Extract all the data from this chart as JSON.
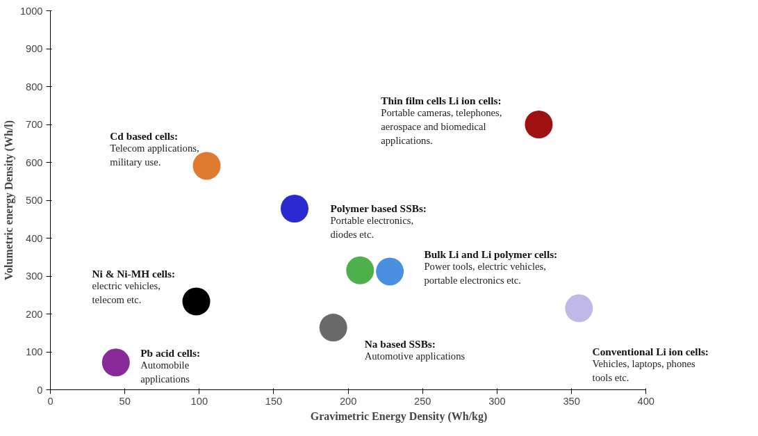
{
  "chart_data": {
    "type": "scatter",
    "xlabel": "Gravimetric Energy Density (Wh/kg)",
    "ylabel": "Volumetric energy Density (Wh/l)",
    "xlim": [
      0,
      400
    ],
    "ylim": [
      0,
      1000
    ],
    "xticks": [
      0,
      50,
      100,
      150,
      200,
      250,
      300,
      350,
      400
    ],
    "yticks": [
      0,
      100,
      200,
      300,
      400,
      500,
      600,
      700,
      800,
      900,
      1000
    ],
    "grid": false,
    "marker": "circle",
    "series": [
      {
        "name": "Thin film cells Li ion cells:",
        "x": [
          328
        ],
        "values": [
          700
        ],
        "colors": [
          "#a01010"
        ]
      },
      {
        "name": "Cd based cells:",
        "x": [
          105
        ],
        "values": [
          591
        ],
        "colors": [
          "#e07a30"
        ]
      },
      {
        "name": "Polymer based SSBs:",
        "x": [
          164
        ],
        "values": [
          478
        ],
        "colors": [
          "#2a2ad0"
        ]
      },
      {
        "name": "Bulk Li and Li polymer cells:",
        "x": [
          208,
          228
        ],
        "values": [
          315,
          312
        ],
        "colors": [
          "#4cb04c",
          "#4a90e0"
        ]
      },
      {
        "name": "Ni & Ni-MH cells:",
        "x": [
          98
        ],
        "values": [
          233
        ],
        "colors": [
          "#000000"
        ]
      },
      {
        "name": "Conventional Li ion cells:",
        "x": [
          355
        ],
        "values": [
          215
        ],
        "colors": [
          "#c0b8e8"
        ]
      },
      {
        "name": "Na based SSBs:",
        "x": [
          190
        ],
        "values": [
          164
        ],
        "colors": [
          "#6a6a6a"
        ]
      },
      {
        "name": "Pb acid cells:",
        "x": [
          44
        ],
        "values": [
          72
        ],
        "colors": [
          "#8a2a9a"
        ]
      }
    ],
    "annotations": [
      "Portable cameras, telephones,\naerospace and biomedical\napplications.",
      "Telecom applications,\nmilitary use.",
      "Portable electronics,\ndiodes etc.",
      "Power tools, electric vehicles,\nportable electronics etc.",
      "electric vehicles,\ntelecom etc.",
      "Vehicles, laptops, phones\ntools etc.",
      "Automotive applications",
      "Automobile\napplications"
    ]
  }
}
